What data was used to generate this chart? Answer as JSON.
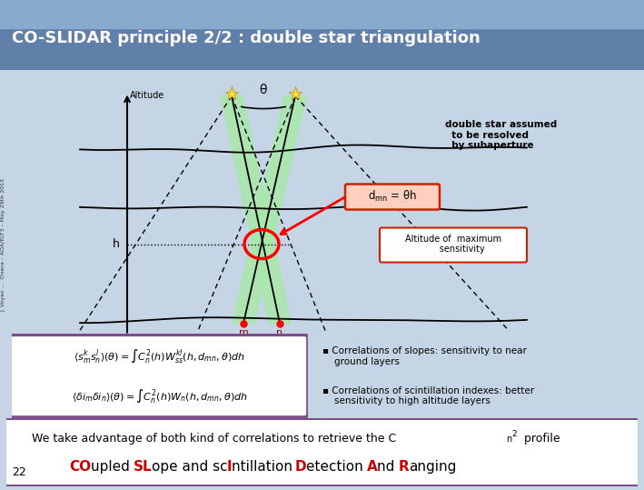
{
  "title": "CO-SLIDAR principle 2/2 : double star triangulation",
  "bg_color": "#C5D5E5",
  "title_bg_top": "#7090B8",
  "title_bg_bottom": "#5070A0",
  "slide_number": "22",
  "formula_box_color": "#7B4F8C",
  "bottom_box_color": "#7B4F8C",
  "bottom_line2_parts": [
    {
      "text": "CO",
      "color": "#CC0000",
      "bold": true
    },
    {
      "text": "upled ",
      "color": "#000000",
      "bold": false
    },
    {
      "text": "SL",
      "color": "#CC0000",
      "bold": true
    },
    {
      "text": "ope and sc",
      "color": "#000000",
      "bold": false
    },
    {
      "text": "I",
      "color": "#CC0000",
      "bold": true
    },
    {
      "text": "ntillation ",
      "color": "#000000",
      "bold": false
    },
    {
      "text": "D",
      "color": "#CC0000",
      "bold": true
    },
    {
      "text": "etection ",
      "color": "#000000",
      "bold": false
    },
    {
      "text": "A",
      "color": "#CC0000",
      "bold": true
    },
    {
      "text": "nd ",
      "color": "#000000",
      "bold": false
    },
    {
      "text": "R",
      "color": "#CC0000",
      "bold": true
    },
    {
      "text": "anging",
      "color": "#000000",
      "bold": false
    }
  ]
}
